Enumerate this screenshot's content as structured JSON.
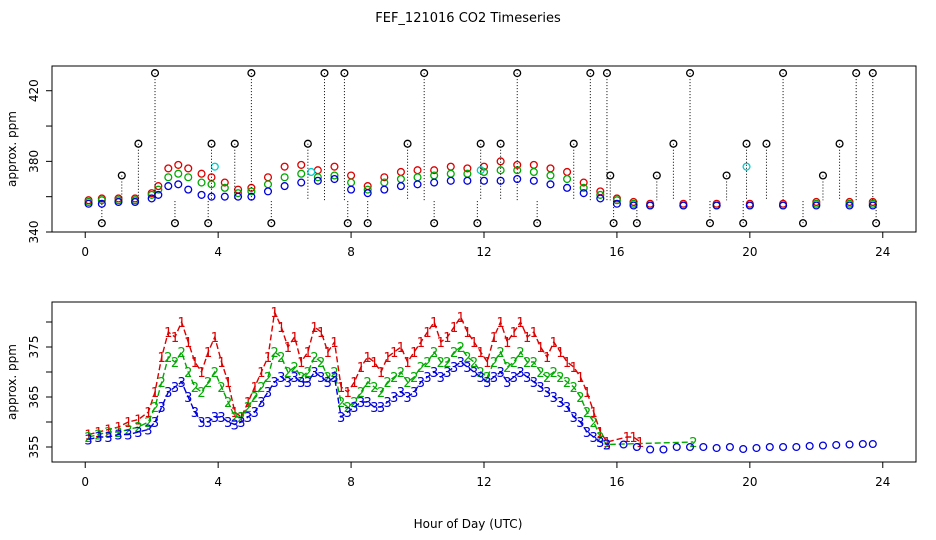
{
  "chart_data": [
    {
      "type": "scatter",
      "title": "FEF_121016  CO2 Timeseries",
      "ylabel": "approx. ppm",
      "xlabel": "",
      "xlim": [
        -1,
        25
      ],
      "ylim": [
        340,
        434
      ],
      "x_ticks": [
        0,
        4,
        8,
        12,
        16,
        20,
        24
      ],
      "y_ticks": [
        340,
        380,
        420
      ],
      "y_ticks_label": [
        "340",
        "380",
        "420"
      ],
      "extra_y_ticks": [
        360,
        400
      ],
      "marker": "circle",
      "grid": false,
      "series": [
        {
          "color": "#dd0000",
          "x": [
            0.1,
            0.5,
            1.0,
            1.5,
            2.0,
            2.2,
            2.5,
            2.8,
            3.1,
            3.5,
            3.8,
            4.2,
            4.6,
            5.0,
            5.5,
            6.0,
            6.5,
            7.0,
            7.5,
            8.0,
            8.5,
            9.0,
            9.5,
            10.0,
            10.5,
            11.0,
            11.5,
            12.0,
            12.5,
            13.0,
            13.5,
            14.0,
            14.5,
            15.0,
            15.5,
            16.0,
            16.5,
            17.0,
            18.0,
            19.0,
            20.0,
            21.0,
            22.0,
            23.0,
            23.7
          ],
          "y": [
            358,
            359,
            359,
            359,
            362,
            366,
            376,
            378,
            376,
            373,
            371,
            368,
            364,
            365,
            371,
            377,
            378,
            375,
            377,
            372,
            366,
            371,
            374,
            375,
            375,
            377,
            376,
            377,
            380,
            378,
            378,
            376,
            374,
            368,
            363,
            359,
            357,
            356,
            356,
            356,
            356,
            356,
            357,
            357,
            357
          ]
        },
        {
          "color": "#00aa00",
          "x": [
            0.1,
            0.5,
            1.0,
            1.5,
            2.0,
            2.2,
            2.5,
            2.8,
            3.1,
            3.5,
            3.8,
            4.2,
            4.6,
            5.0,
            5.5,
            6.0,
            6.5,
            7.0,
            7.5,
            8.0,
            8.5,
            9.0,
            9.5,
            10.0,
            10.5,
            11.0,
            11.5,
            12.0,
            12.5,
            13.0,
            13.5,
            14.0,
            14.5,
            15.0,
            15.5,
            16.0,
            16.5,
            17.0,
            18.0,
            19.0,
            20.0,
            21.0,
            22.0,
            23.0,
            23.7
          ],
          "y": [
            357,
            358,
            358,
            358,
            361,
            364,
            371,
            373,
            371,
            368,
            367,
            365,
            362,
            363,
            367,
            371,
            373,
            371,
            372,
            368,
            364,
            368,
            370,
            371,
            372,
            373,
            373,
            374,
            375,
            375,
            374,
            372,
            370,
            365,
            361,
            358,
            356,
            355,
            355,
            355,
            355,
            355,
            356,
            356,
            356
          ]
        },
        {
          "color": "#0000dd",
          "x": [
            0.1,
            0.5,
            1.0,
            1.5,
            2.0,
            2.2,
            2.5,
            2.8,
            3.1,
            3.5,
            3.8,
            4.2,
            4.6,
            5.0,
            5.5,
            6.0,
            6.5,
            7.0,
            7.5,
            8.0,
            8.5,
            9.0,
            9.5,
            10.0,
            10.5,
            11.0,
            11.5,
            12.0,
            12.5,
            13.0,
            13.5,
            14.0,
            14.5,
            15.0,
            15.5,
            16.0,
            16.5,
            17.0,
            18.0,
            19.0,
            20.0,
            21.0,
            22.0,
            23.0,
            23.7
          ],
          "y": [
            356,
            356,
            357,
            357,
            359,
            361,
            366,
            367,
            364,
            361,
            360,
            360,
            360,
            360,
            363,
            366,
            368,
            369,
            370,
            364,
            362,
            364,
            366,
            367,
            368,
            369,
            369,
            369,
            369,
            370,
            369,
            367,
            365,
            362,
            359,
            356,
            355,
            355,
            355,
            355,
            355,
            355,
            355,
            355,
            355
          ]
        },
        {
          "color": "#00cccc",
          "x": [
            3.9,
            19.9,
            11.9,
            6.8
          ],
          "y": [
            377,
            377,
            375,
            374
          ]
        },
        {
          "color": "#000000",
          "x": [
            0.5,
            1.1,
            1.6,
            2.1,
            2.7,
            3.7,
            3.8,
            4.5,
            5.0,
            5.6,
            6.7,
            7.2,
            7.8,
            7.9,
            8.5,
            9.7,
            10.2,
            10.5,
            11.8,
            11.9,
            12.5,
            13.0,
            13.6,
            14.7,
            15.2,
            15.7,
            15.8,
            15.9,
            16.6,
            17.2,
            17.7,
            18.2,
            18.8,
            19.3,
            19.8,
            19.9,
            20.5,
            21.0,
            21.6,
            22.2,
            22.7,
            23.2,
            23.7,
            23.8
          ],
          "y": [
            345,
            372,
            390,
            430,
            345,
            345,
            390,
            390,
            430,
            345,
            390,
            430,
            430,
            345,
            345,
            390,
            430,
            345,
            345,
            390,
            390,
            430,
            345,
            390,
            430,
            430,
            372,
            345,
            345,
            372,
            390,
            430,
            345,
            372,
            345,
            390,
            390,
            430,
            345,
            372,
            390,
            430,
            430,
            345
          ]
        }
      ]
    },
    {
      "type": "scatter",
      "title": "",
      "ylabel": "approx. ppm",
      "xlabel": "Hour of Day (UTC)",
      "xlim": [
        -1,
        25
      ],
      "ylim": [
        352,
        384
      ],
      "x_ticks": [
        0,
        4,
        8,
        12,
        16,
        20,
        24
      ],
      "y_ticks": [
        355,
        365,
        375
      ],
      "y_ticks_label": [
        "355",
        "365",
        "375"
      ],
      "extra_y_ticks": [
        360,
        370,
        380
      ],
      "marker": "digit",
      "grid": false,
      "series": [
        {
          "color": "#dd0000",
          "symbol": "1",
          "x": [
            0.1,
            0.4,
            0.7,
            1.0,
            1.3,
            1.6,
            1.9,
            2.1,
            2.3,
            2.5,
            2.7,
            2.9,
            3.1,
            3.3,
            3.5,
            3.7,
            3.9,
            4.1,
            4.3,
            4.5,
            4.7,
            4.9,
            5.1,
            5.3,
            5.5,
            5.7,
            5.9,
            6.1,
            6.3,
            6.5,
            6.7,
            6.9,
            7.1,
            7.3,
            7.5,
            7.7,
            7.9,
            8.1,
            8.3,
            8.5,
            8.7,
            8.9,
            9.1,
            9.3,
            9.5,
            9.7,
            9.9,
            10.1,
            10.3,
            10.5,
            10.7,
            10.9,
            11.1,
            11.3,
            11.5,
            11.7,
            11.9,
            12.1,
            12.3,
            12.5,
            12.7,
            12.9,
            13.1,
            13.3,
            13.5,
            13.7,
            13.9,
            14.1,
            14.3,
            14.5,
            14.7,
            14.9,
            15.1,
            15.3,
            15.5,
            15.7,
            16.3,
            16.5,
            16.7
          ],
          "y": [
            357.5,
            358,
            358.5,
            359,
            360,
            360.5,
            362,
            366,
            373,
            378,
            377,
            380,
            376,
            372,
            370,
            374,
            377,
            372,
            368,
            362,
            361,
            364,
            367,
            370,
            373,
            382,
            379,
            375,
            377,
            372,
            374,
            379,
            378,
            374,
            376,
            367,
            366,
            368,
            371,
            373,
            372,
            370,
            373,
            374,
            375,
            372,
            374,
            376,
            378,
            380,
            376,
            377,
            379,
            381,
            378,
            376,
            374,
            372,
            377,
            380,
            376,
            378,
            380,
            377,
            378,
            375,
            373,
            376,
            374,
            372,
            371,
            369,
            366,
            362,
            358,
            356,
            357,
            357,
            356
          ]
        },
        {
          "color": "#00aa00",
          "symbol": "2",
          "x": [
            0.1,
            0.4,
            0.7,
            1.0,
            1.3,
            1.6,
            1.9,
            2.1,
            2.3,
            2.5,
            2.7,
            2.9,
            3.1,
            3.3,
            3.5,
            3.7,
            3.9,
            4.1,
            4.3,
            4.5,
            4.7,
            4.9,
            5.1,
            5.3,
            5.5,
            5.7,
            5.9,
            6.1,
            6.3,
            6.5,
            6.7,
            6.9,
            7.1,
            7.3,
            7.5,
            7.7,
            7.9,
            8.1,
            8.3,
            8.5,
            8.7,
            8.9,
            9.1,
            9.3,
            9.5,
            9.7,
            9.9,
            10.1,
            10.3,
            10.5,
            10.7,
            10.9,
            11.1,
            11.3,
            11.5,
            11.7,
            11.9,
            12.1,
            12.3,
            12.5,
            12.7,
            12.9,
            13.1,
            13.3,
            13.5,
            13.7,
            13.9,
            14.1,
            14.3,
            14.5,
            14.7,
            14.9,
            15.1,
            15.3,
            15.5,
            15.7,
            18.3
          ],
          "y": [
            357,
            357.5,
            358,
            358,
            358.5,
            359,
            360,
            363,
            368,
            373,
            372,
            374,
            370,
            367,
            366,
            368,
            370,
            367,
            364,
            361,
            361,
            363,
            365,
            367,
            369,
            374,
            373,
            370,
            371,
            369,
            370,
            373,
            372,
            369,
            370,
            364,
            363,
            364,
            366,
            368,
            367,
            366,
            368,
            369,
            370,
            368,
            369,
            371,
            372,
            374,
            372,
            372,
            374,
            375,
            373,
            372,
            370,
            369,
            372,
            374,
            371,
            372,
            374,
            372,
            372,
            370,
            369,
            370,
            369,
            368,
            367,
            365,
            362,
            360,
            357,
            355.5,
            356
          ]
        },
        {
          "color": "#0000dd",
          "symbol": "3",
          "x": [
            0.1,
            0.4,
            0.7,
            1.0,
            1.3,
            1.6,
            1.9,
            2.1,
            2.3,
            2.5,
            2.7,
            2.9,
            3.1,
            3.3,
            3.5,
            3.7,
            3.9,
            4.1,
            4.3,
            4.5,
            4.7,
            4.9,
            5.1,
            5.3,
            5.5,
            5.7,
            5.9,
            6.1,
            6.3,
            6.5,
            6.7,
            6.9,
            7.1,
            7.3,
            7.5,
            7.7,
            7.9,
            8.1,
            8.3,
            8.5,
            8.7,
            8.9,
            9.1,
            9.3,
            9.5,
            9.7,
            9.9,
            10.1,
            10.3,
            10.5,
            10.7,
            10.9,
            11.1,
            11.3,
            11.5,
            11.7,
            11.9,
            12.1,
            12.3,
            12.5,
            12.7,
            12.9,
            13.1,
            13.3,
            13.5,
            13.7,
            13.9,
            14.1,
            14.3,
            14.5,
            14.7,
            14.9,
            15.1,
            15.3,
            15.5,
            15.7
          ],
          "y": [
            356.5,
            357,
            357,
            357.5,
            357.5,
            358,
            358.5,
            360,
            363,
            366,
            367,
            368,
            365,
            362,
            360,
            360,
            361,
            361,
            360,
            359.5,
            360,
            361,
            362,
            364,
            366,
            368,
            369,
            368,
            369,
            368,
            368,
            370,
            369,
            368,
            369,
            361,
            362,
            363,
            364,
            364,
            363,
            363,
            364,
            365,
            366,
            365,
            366,
            368,
            369,
            370,
            369,
            370,
            371,
            372,
            371,
            370,
            369,
            368,
            369,
            370,
            368,
            369,
            370,
            369,
            368,
            367,
            366,
            365,
            364,
            363,
            361,
            360,
            358,
            357,
            356,
            355.5
          ]
        },
        {
          "color": "#0000dd",
          "symbol": "circle",
          "x": [
            16.2,
            16.6,
            17.0,
            17.4,
            17.8,
            18.2,
            18.6,
            19.0,
            19.4,
            19.8,
            20.2,
            20.6,
            21.0,
            21.4,
            21.8,
            22.2,
            22.6,
            23.0,
            23.4,
            23.7
          ],
          "y": [
            355.5,
            355,
            354.5,
            354.5,
            355,
            355,
            355,
            354.8,
            355,
            354.6,
            354.8,
            355,
            355,
            355,
            355.2,
            355.3,
            355.4,
            355.5,
            355.6,
            355.6
          ]
        }
      ]
    }
  ]
}
